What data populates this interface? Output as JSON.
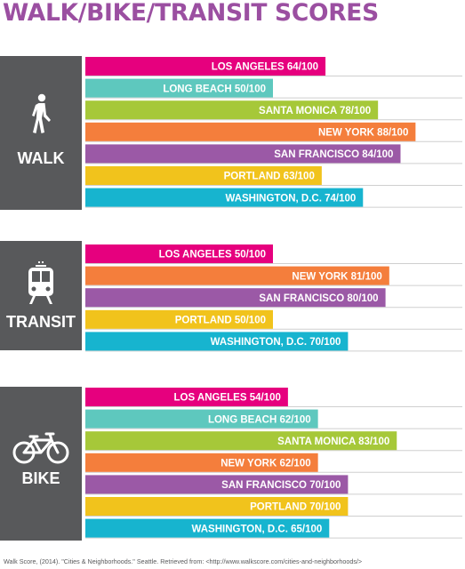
{
  "title": "WALK/BIKE/TRANSIT SCORES",
  "footer": "Walk Score, (2014). \"Cities & Neighborhoods.\" Seattle. Retrieved from: <http://www.walkscore.com/cities-and-neighborhoods/>",
  "colors": {
    "title": "#9b4fa1",
    "panel": "#58595b",
    "los_angeles": "#e6007e",
    "long_beach": "#5ec8be",
    "santa_monica": "#a6c839",
    "new_york": "#f47e3c",
    "san_francisco": "#9b59a6",
    "portland": "#f1c31c",
    "washington_dc": "#17b4cf"
  },
  "chart_data": [
    {
      "type": "bar",
      "panel_label": "WALK",
      "icon": "walking-person-icon",
      "orientation": "horizontal",
      "xlim": [
        0,
        100
      ],
      "bars": [
        {
          "label": "LOS ANGELES  64/100",
          "value": 64,
          "color": "#e6007e"
        },
        {
          "label": "LONG BEACH  50/100",
          "value": 50,
          "color": "#5ec8be"
        },
        {
          "label": "SANTA MONICA  78/100",
          "value": 78,
          "color": "#a6c839"
        },
        {
          "label": "NEW YORK  88/100",
          "value": 88,
          "color": "#f47e3c"
        },
        {
          "label": "SAN FRANCISCO  84/100",
          "value": 84,
          "color": "#9b59a6"
        },
        {
          "label": "PORTLAND  63/100",
          "value": 63,
          "color": "#f1c31c"
        },
        {
          "label": "WASHINGTON, D.C.  74/100",
          "value": 74,
          "color": "#17b4cf"
        }
      ]
    },
    {
      "type": "bar",
      "panel_label": "TRANSIT",
      "icon": "train-icon",
      "orientation": "horizontal",
      "xlim": [
        0,
        100
      ],
      "bars": [
        {
          "label": "LOS ANGELES  50/100",
          "value": 50,
          "color": "#e6007e"
        },
        {
          "label": "NEW YORK  81/100",
          "value": 81,
          "color": "#f47e3c"
        },
        {
          "label": "SAN FRANCISCO  80/100",
          "value": 80,
          "color": "#9b59a6"
        },
        {
          "label": "PORTLAND  50/100",
          "value": 50,
          "color": "#f1c31c"
        },
        {
          "label": "WASHINGTON, D.C.  70/100",
          "value": 70,
          "color": "#17b4cf"
        }
      ]
    },
    {
      "type": "bar",
      "panel_label": "BIKE",
      "icon": "bicycle-icon",
      "orientation": "horizontal",
      "xlim": [
        0,
        100
      ],
      "bars": [
        {
          "label": "LOS ANGELES  54/100",
          "value": 54,
          "color": "#e6007e"
        },
        {
          "label": "LONG BEACH  62/100",
          "value": 62,
          "color": "#5ec8be"
        },
        {
          "label": "SANTA MONICA  83/100",
          "value": 83,
          "color": "#a6c839"
        },
        {
          "label": "NEW YORK  62/100",
          "value": 62,
          "color": "#f47e3c"
        },
        {
          "label": "SAN FRANCISCO  70/100",
          "value": 70,
          "color": "#9b59a6"
        },
        {
          "label": "PORTLAND  70/100",
          "value": 70,
          "color": "#f1c31c"
        },
        {
          "label": "WASHINGTON, D.C.  65/100",
          "value": 65,
          "color": "#17b4cf"
        }
      ]
    }
  ]
}
